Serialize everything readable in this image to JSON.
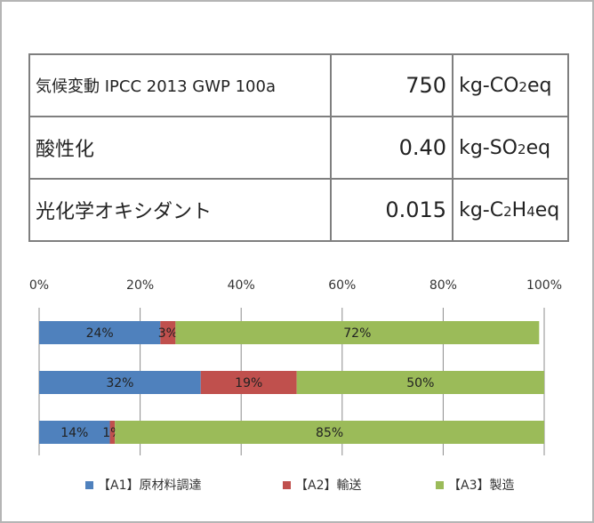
{
  "impact_table": {
    "rows": [
      {
        "category": "気候変動 IPCC 2013 GWP 100a",
        "value": "750",
        "unit_prefix": "kg-CO",
        "unit_sub": "2",
        "unit_suffix": "eq"
      },
      {
        "category": "酸性化",
        "value": "0.40",
        "unit_prefix": "kg-SO",
        "unit_sub": "2",
        "unit_suffix": "eq"
      },
      {
        "category": "光化学オキシダント",
        "value": "0.015",
        "unit_prefix": "kg-C",
        "unit_sub": "2",
        "unit_mid": "H",
        "unit_sub2": "4",
        "unit_suffix": "eq"
      }
    ]
  },
  "chart_data": {
    "type": "bar",
    "orientation": "horizontal",
    "stacked": true,
    "percent": true,
    "x_ticks": [
      "0%",
      "20%",
      "40%",
      "60%",
      "80%",
      "100%"
    ],
    "xlim": [
      0,
      100
    ],
    "grid": true,
    "legend_position": "bottom",
    "categories": [
      "気候変動",
      "酸性化",
      "光化学オキシダント"
    ],
    "series": [
      {
        "name": "【A1】原材料調達",
        "color": "#4f81bd",
        "values": [
          24,
          32,
          14
        ],
        "labels": [
          "24%",
          "32%",
          "14%"
        ]
      },
      {
        "name": "【A2】輸送",
        "color": "#c0504d",
        "values": [
          3,
          19,
          1
        ],
        "labels": [
          "3%",
          "19%",
          "1%"
        ]
      },
      {
        "name": "【A3】製造",
        "color": "#9bbb59",
        "values": [
          72,
          50,
          85
        ],
        "labels": [
          "72%",
          "50%",
          "85%"
        ]
      }
    ]
  }
}
